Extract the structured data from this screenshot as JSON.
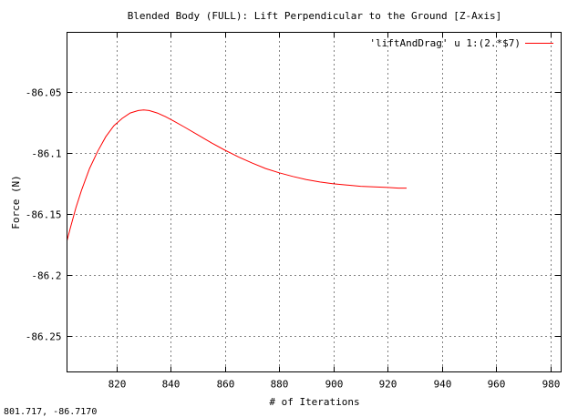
{
  "chart_data": {
    "type": "line",
    "title": "Blended Body (FULL): Lift Perpendicular to the Ground [Z-Axis]",
    "xlabel": "# of Iterations",
    "ylabel": "Force (N)",
    "xlim": [
      801.7,
      984
    ],
    "ylim": [
      -86.2795,
      -86.0015
    ],
    "x_ticks": [
      820,
      840,
      860,
      880,
      900,
      920,
      940,
      960,
      980
    ],
    "y_ticks": [
      -86.05,
      -86.1,
      -86.15,
      -86.2,
      -86.25
    ],
    "x_tick_labels": [
      "820",
      "840",
      "860",
      "880",
      "900",
      "920",
      "940",
      "960",
      "980"
    ],
    "y_tick_labels": [
      "-86.05",
      "-86.1",
      "-86.15",
      "-86.2",
      "-86.25"
    ],
    "grid": true,
    "legend_position": "top-right",
    "series": [
      {
        "name": "'liftAndDrag' u 1:(2.*$7)",
        "color": "#ff0000",
        "x": [
          801.7,
          803,
          805,
          807,
          810,
          813,
          816,
          819,
          822,
          825,
          828,
          830,
          832,
          835,
          838,
          841,
          845,
          850,
          855,
          860,
          865,
          870,
          875,
          880,
          885,
          890,
          895,
          900,
          905,
          910,
          915,
          920,
          924,
          927
        ],
        "y": [
          -86.172,
          -86.161,
          -86.145,
          -86.131,
          -86.113,
          -86.099,
          -86.087,
          -86.078,
          -86.072,
          -86.0675,
          -86.0655,
          -86.065,
          -86.0655,
          -86.0675,
          -86.0705,
          -86.074,
          -86.079,
          -86.0855,
          -86.092,
          -86.098,
          -86.1035,
          -86.1085,
          -86.113,
          -86.1165,
          -86.1195,
          -86.122,
          -86.124,
          -86.1255,
          -86.1265,
          -86.1275,
          -86.128,
          -86.1285,
          -86.129,
          -86.129
        ]
      }
    ]
  },
  "status_text": "801.717,  -86.7170"
}
